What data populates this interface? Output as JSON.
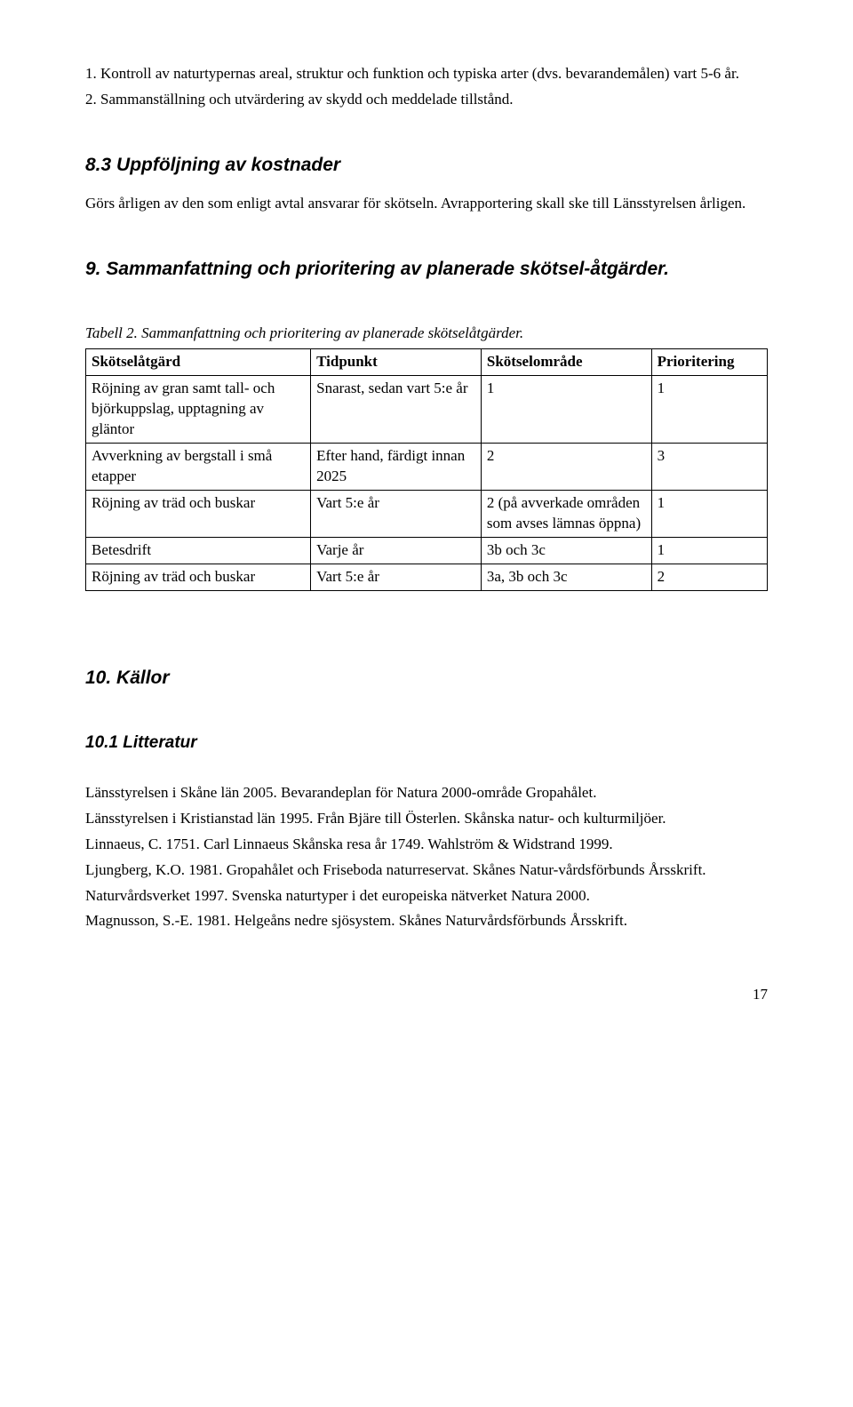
{
  "intro": {
    "item1": "1. Kontroll av naturtypernas areal, struktur och funktion och typiska arter (dvs. bevarandemålen) vart 5-6 år.",
    "item2": "2. Sammanställning och utvärdering av skydd och meddelade tillstånd."
  },
  "section8_3": {
    "heading": "8.3 Uppföljning av kostnader",
    "body": "Görs årligen av den som enligt avtal ansvarar för skötseln. Avrapportering skall ske till Länsstyrelsen årligen."
  },
  "section9": {
    "heading": "9. Sammanfattning och prioritering av planerade skötsel-åtgärder.",
    "table_caption": "Tabell 2. Sammanfattning och prioritering av planerade skötselåtgärder.",
    "columns": [
      "Skötselåtgärd",
      "Tidpunkt",
      "Skötselområde",
      "Prioritering"
    ],
    "rows": [
      [
        "Röjning av gran samt tall- och björkuppslag, upptagning av gläntor",
        "Snarast, sedan vart 5:e år",
        "1",
        "1"
      ],
      [
        "Avverkning av bergstall i små etapper",
        "Efter hand, färdigt innan 2025",
        "2",
        "3"
      ],
      [
        "Röjning av träd och buskar",
        "Vart 5:e år",
        "2 (på avverkade områden som avses lämnas öppna)",
        "1"
      ],
      [
        "Betesdrift",
        "Varje år",
        "3b och 3c",
        "1"
      ],
      [
        "Röjning av träd och buskar",
        "Vart 5:e år",
        "3a, 3b och 3c",
        "2"
      ]
    ]
  },
  "section10": {
    "heading": "10. Källor",
    "sub_heading": "10.1 Litteratur",
    "refs": [
      "Länsstyrelsen i Skåne län 2005. Bevarandeplan för Natura 2000-område Gropahålet.",
      "Länsstyrelsen i Kristianstad län 1995. Från Bjäre till Österlen. Skånska natur- och kulturmiljöer.",
      "Linnaeus, C. 1751. Carl Linnaeus Skånska resa år 1749. Wahlström & Widstrand 1999.",
      "Ljungberg, K.O. 1981. Gropahålet och Friseboda naturreservat. Skånes Natur-vårdsförbunds Årsskrift.",
      "Naturvårdsverket 1997. Svenska naturtyper i det europeiska nätverket Natura 2000.",
      "Magnusson, S.-E. 1981. Helgeåns nedre sjösystem. Skånes Naturvårdsförbunds Årsskrift."
    ]
  },
  "page_number": "17"
}
